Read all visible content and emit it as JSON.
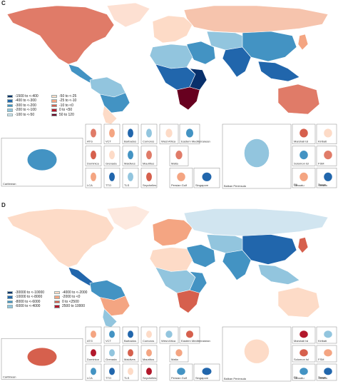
{
  "panels": [
    {
      "letter": "C",
      "legend": [
        {
          "label": "-1500 to <-400",
          "color": "#08306b"
        },
        {
          "label": "-400 to <-300",
          "color": "#2166ac"
        },
        {
          "label": "-300 to <-200",
          "color": "#4393c3"
        },
        {
          "label": "-200 to <-100",
          "color": "#92c5de"
        },
        {
          "label": "-100 to <-50",
          "color": "#d1e5f0"
        },
        {
          "label": "-50 to <-25",
          "color": "#fddbc7"
        },
        {
          "label": "-25 to <-10",
          "color": "#f4a582"
        },
        {
          "label": "-10 to <0",
          "color": "#d6604d"
        },
        {
          "label": "0 to <50",
          "color": "#b2182b"
        },
        {
          "label": "50 to 120",
          "color": "#67001f"
        }
      ],
      "insets": [
        "Caribbean",
        "ATG",
        "VCT",
        "Barbados",
        "Comoros",
        "West Africa",
        "Eastern Mediterranean",
        "Dominica",
        "Grenada",
        "Maldives",
        "Mauritius",
        "Malta",
        "LCA",
        "TTO",
        "TLS",
        "Seychelles",
        "Persian Gulf",
        "Singapore",
        "Balkan Peninsula",
        "Marshall Isl",
        "Kiribati",
        "Solomon Isl",
        "FSM",
        "Vanuatu",
        "Samoa",
        "Fiji",
        "Tonga"
      ]
    },
    {
      "letter": "D",
      "legend": [
        {
          "label": "-30000 to <-10000",
          "color": "#08306b"
        },
        {
          "label": "-10000 to <-8000",
          "color": "#2166ac"
        },
        {
          "label": "-8000 to <-6000",
          "color": "#4393c3"
        },
        {
          "label": "-6000 to <-4000",
          "color": "#92c5de"
        },
        {
          "label": "-4000 to <-2000",
          "color": "#fddbc7"
        },
        {
          "label": "-2000 to <0",
          "color": "#f4a582"
        },
        {
          "label": "0 to <2500",
          "color": "#d6604d"
        },
        {
          "label": "2500 to 10000",
          "color": "#b2182b"
        }
      ],
      "insets": [
        "Caribbean",
        "ATG",
        "VCT",
        "Barbados",
        "Comoros",
        "West Africa",
        "Eastern Mediterranean",
        "Dominica",
        "Grenada",
        "Maldives",
        "Mauritius",
        "Malta",
        "LCA",
        "TTO",
        "TLS",
        "Seychelles",
        "Persian Gulf",
        "Singapore",
        "Balkan Peninsula",
        "Marshall Isl",
        "Kiribati",
        "Solomon Isl",
        "FSM",
        "Vanuatu",
        "Samoa",
        "Fiji",
        "Tonga"
      ]
    }
  ],
  "map_colors": {
    "C": {
      "northamerica": "#e07b68",
      "greenland": "#fde0d2",
      "centralamerica": "#4393c3",
      "southamerica_n": "#92c5de",
      "southamerica_c": "#4393c3",
      "southamerica_s": "#fddbc7",
      "europe": "#fddbc7",
      "russia": "#f6c4ad",
      "middleeast": "#4393c3",
      "africa_n": "#92c5de",
      "africa_c": "#2166ac",
      "africa_e": "#08306b",
      "africa_s": "#67001f",
      "centralasia": "#92c5de",
      "southasia": "#2166ac",
      "china": "#4393c3",
      "seasia": "#2166ac",
      "japan": "#f4a582",
      "australia": "#e07b68"
    },
    "D": {
      "northamerica": "#fddbc7",
      "greenland": "#fde9df",
      "centralamerica": "#2166ac",
      "southamerica_n": "#4393c3",
      "southamerica_c": "#f4a582",
      "southamerica_s": "#92c5de",
      "europe": "#f4a582",
      "russia": "#d1e5f0",
      "middleeast": "#4393c3",
      "africa_n": "#fddbc7",
      "africa_c": "#92c5de",
      "africa_e": "#4393c3",
      "africa_s": "#d6604d",
      "centralasia": "#92c5de",
      "southasia": "#4393c3",
      "china": "#2166ac",
      "seasia": "#92c5de",
      "japan": "#d6604d",
      "australia": "#fddbc7"
    }
  }
}
